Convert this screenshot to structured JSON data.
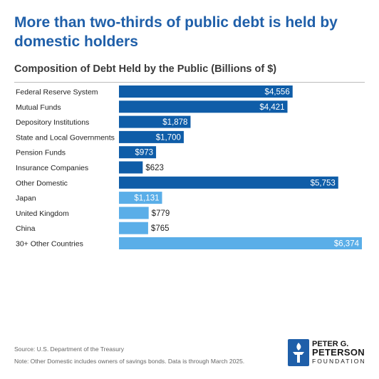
{
  "header": {
    "title": "More than two-thirds of public debt is held by domestic holders",
    "subtitle": "Composition of Debt Held by the Public (Billions of $)"
  },
  "chart_data": {
    "type": "bar",
    "orientation": "horizontal",
    "title": "Composition of Debt Held by the Public (Billions of $)",
    "categories": [
      "Federal Reserve System",
      "Mutual Funds",
      "Depository Institutions",
      "State and Local Governments",
      "Pension Funds",
      "Insurance Companies",
      "Other Domestic",
      "Japan",
      "United Kingdom",
      "China",
      "30+ Other Countries"
    ],
    "values": [
      4556,
      4421,
      1878,
      1700,
      973,
      623,
      5753,
      1131,
      779,
      765,
      6374
    ],
    "value_labels": [
      "$4,556",
      "$4,421",
      "$1,878",
      "$1,700",
      "$973",
      "$623",
      "$5,753",
      "$1,131",
      "$779",
      "$765",
      "$6,374"
    ],
    "groups": [
      "domestic",
      "domestic",
      "domestic",
      "domestic",
      "domestic",
      "domestic",
      "domestic",
      "foreign",
      "foreign",
      "foreign",
      "foreign"
    ],
    "colors": {
      "domestic": "#0f5da8",
      "foreign": "#5aaee8"
    },
    "xlim": [
      0,
      6374
    ],
    "grid": false,
    "legend": "none"
  },
  "footer": {
    "source": "Source: U.S. Department of the Treasury",
    "note": "Note: Other Domestic includes owners of savings bonds. Data is through March 2025."
  },
  "logo": {
    "line1": "PETER G.",
    "line2": "PETERSON",
    "line3": "FOUNDATION",
    "icon": "torch-icon"
  }
}
